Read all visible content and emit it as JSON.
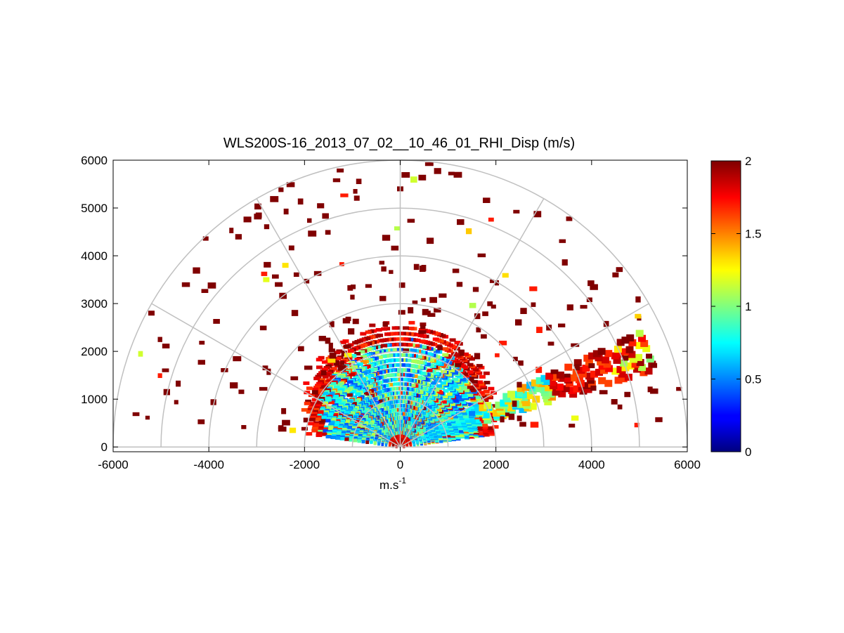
{
  "chart_data": {
    "type": "heatmap",
    "subtype": "polar-rhi-scan",
    "title": "WLS200S-16_2013_07_02__10_46_01_RHI_Disp (m/s)",
    "xlabel": "m.s",
    "xlabel_superscript": "-1",
    "ylabel": "",
    "xlim": [
      -6000,
      6000
    ],
    "ylim": [
      -100,
      6000
    ],
    "xticks": [
      -6000,
      -4000,
      -2000,
      0,
      2000,
      4000,
      6000
    ],
    "xtick_labels": [
      "-6000",
      "-4000",
      "-2000",
      "0",
      "2000",
      "4000",
      "6000"
    ],
    "yticks": [
      0,
      1000,
      2000,
      3000,
      4000,
      5000,
      6000
    ],
    "ytick_labels": [
      "0",
      "1000",
      "2000",
      "3000",
      "4000",
      "5000",
      "6000"
    ],
    "polar_grid": {
      "range_rings": [
        1000,
        2000,
        3000,
        4000,
        5000,
        6000
      ],
      "spoke_angles_deg": [
        0,
        30,
        60,
        90,
        120,
        150,
        180
      ]
    },
    "colorbar": {
      "colormap": "jet",
      "range": [
        0,
        2
      ],
      "ticks": [
        0,
        0.5,
        1,
        1.5,
        2
      ],
      "tick_labels": [
        "0",
        "0.5",
        "1",
        "1.5",
        "2"
      ]
    },
    "description_of_field": "Dispersion values (m/s) mostly 0.3-1.2 within ~2000 m range near ground; saturated (2) scattered points extend to 6000 m; elevated plume between 20-25 degrees elevation extending to ~5300 m.",
    "sample_points": [
      {
        "x": -1500,
        "y": 1000,
        "value": 0.8
      },
      {
        "x": -800,
        "y": 1400,
        "value": 0.7
      },
      {
        "x": 0,
        "y": 1600,
        "value": 0.9
      },
      {
        "x": 800,
        "y": 1400,
        "value": 0.6
      },
      {
        "x": 1500,
        "y": 700,
        "value": 0.5
      },
      {
        "x": 2500,
        "y": 1100,
        "value": 0.9
      },
      {
        "x": 3500,
        "y": 1400,
        "value": 1.8
      },
      {
        "x": 4000,
        "y": 1700,
        "value": 2.0
      },
      {
        "x": 5200,
        "y": 1900,
        "value": 2.0
      },
      {
        "x": -2800,
        "y": 3500,
        "value": 1.2
      },
      {
        "x": -2400,
        "y": 3800,
        "value": 1.3
      },
      {
        "x": 0,
        "y": 5400,
        "value": 2.0
      },
      {
        "x": -5200,
        "y": 2800,
        "value": 2.0
      },
      {
        "x": 4500,
        "y": 3600,
        "value": 2.0
      }
    ]
  }
}
